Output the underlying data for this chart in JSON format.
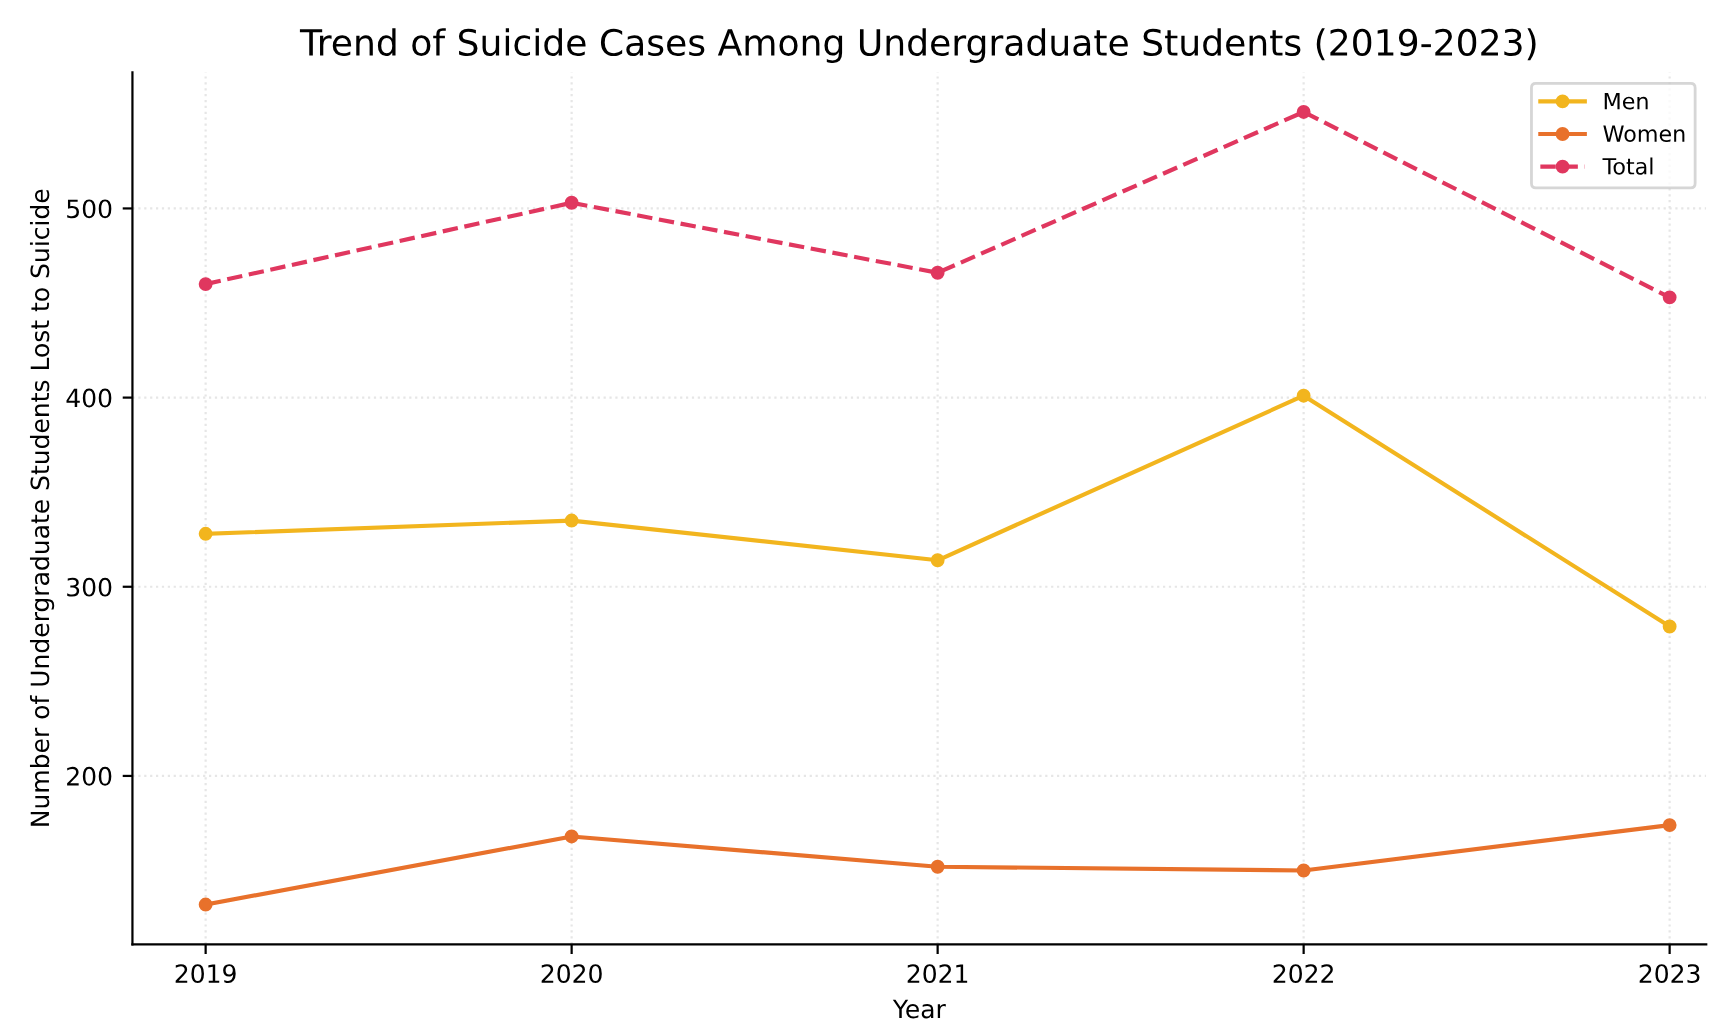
{
  "chart_data": {
    "type": "line",
    "title": "Trend of Suicide Cases Among Undergraduate Students (2019-2023)",
    "xlabel": "Year",
    "ylabel": "Number of Undergraduate Students Lost to Suicide",
    "x": [
      2019,
      2020,
      2021,
      2022,
      2023
    ],
    "series": [
      {
        "name": "Men",
        "color": "#f2b51e",
        "values": [
          328,
          335,
          314,
          401,
          279
        ],
        "line_style": "solid"
      },
      {
        "name": "Women",
        "color": "#e8712b",
        "values": [
          132,
          168,
          152,
          150,
          174
        ],
        "line_style": "solid"
      },
      {
        "name": "Total",
        "color": "#e0375f",
        "values": [
          460,
          503,
          466,
          551,
          453
        ],
        "line_style": "dashed"
      }
    ],
    "xlim": [
      2018.8,
      2023.1
    ],
    "xticks": [
      2019,
      2020,
      2021,
      2022,
      2023
    ],
    "ylim": [
      111,
      572
    ],
    "yticks": [
      200,
      300,
      400,
      500
    ],
    "marker": "circle",
    "grid": true,
    "legend": "top right"
  }
}
